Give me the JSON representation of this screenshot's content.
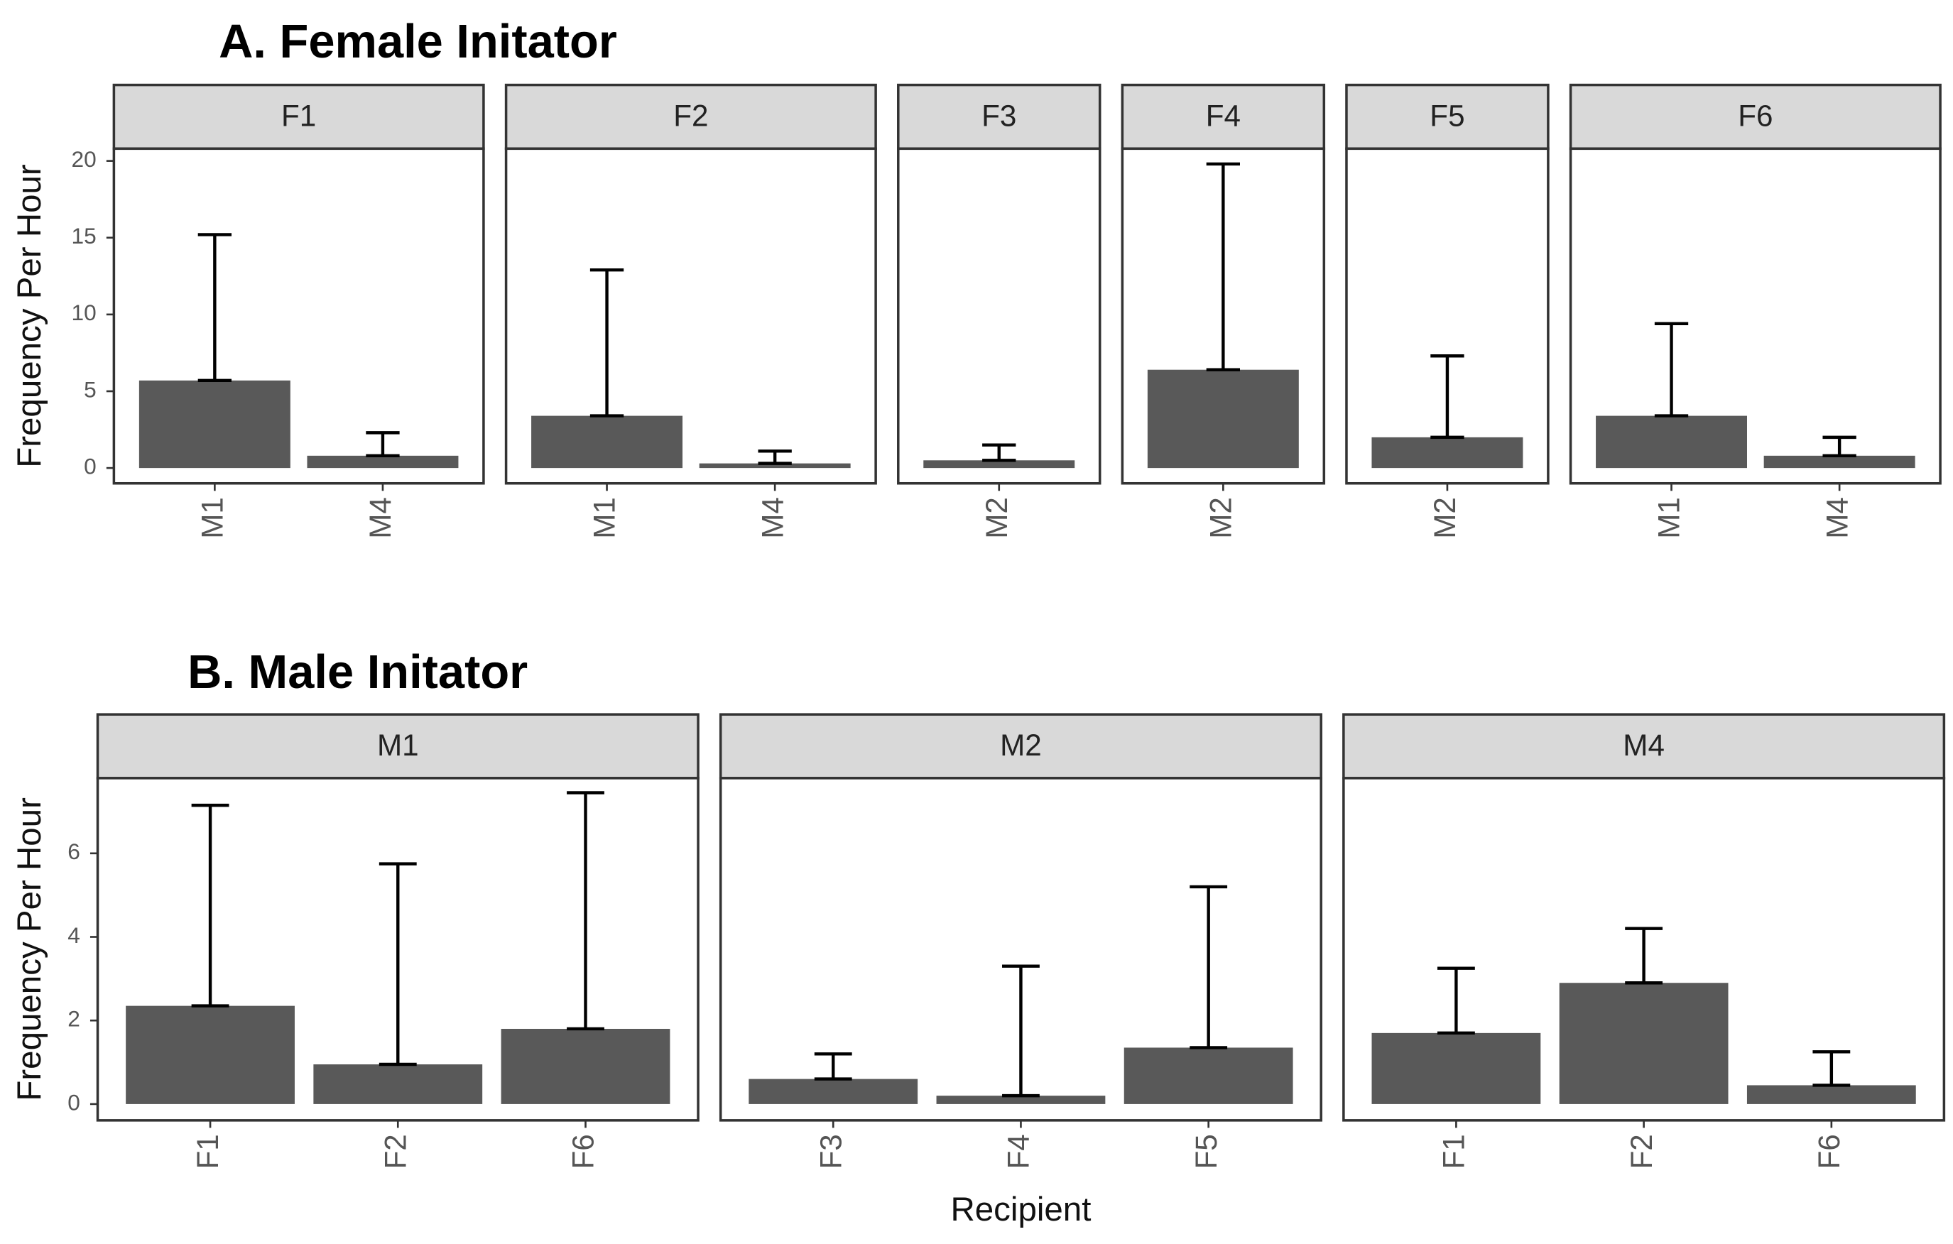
{
  "chart_data": [
    {
      "type": "bar",
      "title": "A. Female Initator",
      "y_label": "Frequency Per Hour",
      "color": "#595959",
      "ylim": [
        -1,
        20.8
      ],
      "yticks": [
        0,
        5,
        10,
        15,
        20
      ],
      "facets": [
        {
          "name": "F1",
          "categories": [
            "M1",
            "M4"
          ],
          "values": [
            5.7,
            0.8
          ],
          "errors": [
            9.5,
            1.5
          ]
        },
        {
          "name": "F2",
          "categories": [
            "M1",
            "M4"
          ],
          "values": [
            3.4,
            0.3
          ],
          "errors": [
            9.5,
            0.8
          ]
        },
        {
          "name": "F3",
          "categories": [
            "M2"
          ],
          "values": [
            0.5
          ],
          "errors": [
            1.0
          ]
        },
        {
          "name": "F4",
          "categories": [
            "M2"
          ],
          "values": [
            6.4
          ],
          "errors": [
            13.4
          ]
        },
        {
          "name": "F5",
          "categories": [
            "M2"
          ],
          "values": [
            2.0
          ],
          "errors": [
            5.3
          ]
        },
        {
          "name": "F6",
          "categories": [
            "M1",
            "M4"
          ],
          "values": [
            3.4,
            0.8
          ],
          "errors": [
            6.0,
            1.2
          ]
        }
      ]
    },
    {
      "type": "bar",
      "title": "B. Male Initator",
      "y_label": "Frequency Per Hour",
      "x_label": "Recipient",
      "color": "#595959",
      "ylim": [
        -0.39,
        7.8
      ],
      "yticks": [
        0,
        2,
        4,
        6
      ],
      "facets": [
        {
          "name": "M1",
          "categories": [
            "F1",
            "F2",
            "F6"
          ],
          "values": [
            2.35,
            0.95,
            1.8
          ],
          "errors": [
            4.8,
            4.8,
            5.65
          ]
        },
        {
          "name": "M2",
          "categories": [
            "F3",
            "F4",
            "F5"
          ],
          "values": [
            0.6,
            0.2,
            1.35
          ],
          "errors": [
            0.6,
            3.1,
            3.85
          ]
        },
        {
          "name": "M4",
          "categories": [
            "F1",
            "F2",
            "F6"
          ],
          "values": [
            1.7,
            2.9,
            0.45
          ],
          "errors": [
            1.55,
            1.3,
            0.8
          ]
        }
      ]
    }
  ]
}
